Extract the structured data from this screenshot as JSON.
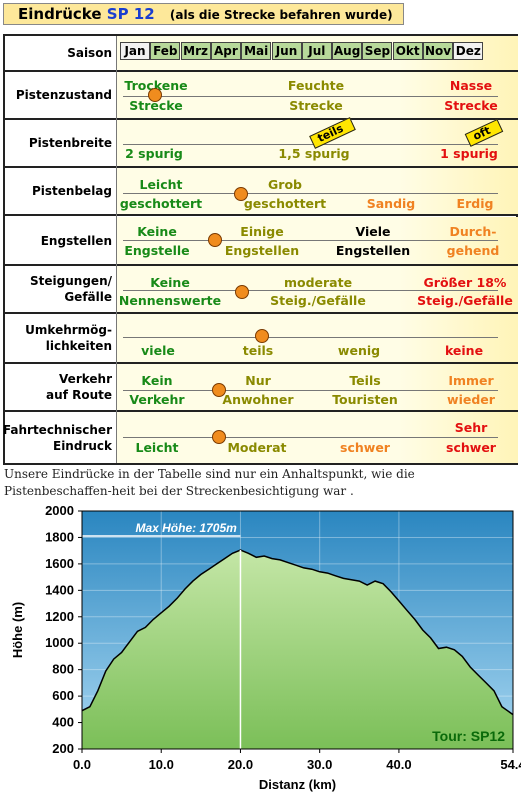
{
  "header": {
    "title_main": "Eindrücke",
    "title_route": "SP 12",
    "title_sub": "(als die Strecke befahren wurde)"
  },
  "season": {
    "label": "Saison",
    "months": [
      "Jan",
      "Feb",
      "Mrz",
      "Apr",
      "Mai",
      "Jun",
      "Jul",
      "Aug",
      "Sep",
      "Okt",
      "Nov",
      "Dez"
    ],
    "active": [
      false,
      true,
      true,
      true,
      true,
      true,
      true,
      true,
      true,
      true,
      true,
      false
    ],
    "active_color": "#b7d99a"
  },
  "rows": {
    "pistenzustand": {
      "label": "Pistenzustand",
      "opt1a": "Trockene",
      "opt1b": "Strecke",
      "opt2a": "Feuchte",
      "opt2b": "Strecke",
      "opt3a": "Nasse",
      "opt3b": "Strecke"
    },
    "pistenbreite": {
      "label": "Pistenbreite",
      "opt1": "2 spurig",
      "opt2": "1,5 spurig",
      "opt3": "1 spurig",
      "tag1": "teils",
      "tag2": "oft"
    },
    "pistenbelag": {
      "label": "Pistenbelag",
      "opt1a": "Leicht",
      "opt1b": "geschottert",
      "opt2a": "Grob",
      "opt2b": "geschottert",
      "opt3": "Sandig",
      "opt4": "Erdig"
    },
    "engstellen": {
      "label": "Engstellen",
      "opt1a": "Keine",
      "opt1b": "Engstelle",
      "opt2a": "Einige",
      "opt2b": "Engstellen",
      "opt3a": "Viele",
      "opt3b": "Engstellen",
      "opt4a": "Durch-",
      "opt4b": "gehend"
    },
    "steigungen": {
      "label1": "Steigungen/",
      "label2": "Gefälle",
      "opt1a": "Keine",
      "opt1b": "Nennenswerte",
      "opt2a": "moderate",
      "opt2b": "Steig./Gefälle",
      "opt3a": "Größer 18%",
      "opt3b": "Steig./Gefälle"
    },
    "umkehr": {
      "label1": "Umkehrmög-",
      "label2": "lichkeiten",
      "opt1": "viele",
      "opt2": "teils",
      "opt3": "wenig",
      "opt4": "keine"
    },
    "verkehr": {
      "label1": "Verkehr",
      "label2": "auf Route",
      "opt1a": "Kein",
      "opt1b": "Verkehr",
      "opt2a": "Nur",
      "opt2b": "Anwohner",
      "opt3a": "Teils",
      "opt3b": "Touristen",
      "opt4a": "Immer",
      "opt4b": "wieder"
    },
    "fahrtechnisch": {
      "label1": "Fahrtechnischer",
      "label2": "Eindruck",
      "opt1": "Leicht",
      "opt2": "Moderat",
      "opt3": "schwer",
      "opt4a": "Sehr",
      "opt4b": "schwer"
    }
  },
  "note": "Unsere Eindrücke in der Tabelle sind nur ein Anhaltspunkt, wie die Pistenbeschaffen-heit bei der Streckenbesichtigung war .",
  "chart_data": {
    "type": "area",
    "xlabel": "Distanz  (km)",
    "ylabel": "Höhe  (m)",
    "xlim": [
      0,
      54.4
    ],
    "ylim": [
      200,
      2000
    ],
    "xticks": [
      "0.0",
      "10.0",
      "20.0",
      "30.0",
      "40.0",
      "54.4"
    ],
    "xtick_values": [
      0,
      10,
      20,
      30,
      40,
      54.4
    ],
    "yticks": [
      200,
      400,
      600,
      800,
      1000,
      1200,
      1400,
      1600,
      1800,
      2000
    ],
    "annotation": "Max Höhe: 1705m",
    "annotation_x": 20,
    "max_value": 1705,
    "tour_label": "Tour: SP12",
    "x": [
      0,
      1,
      2,
      3,
      4,
      5,
      6,
      7,
      8,
      9,
      10,
      11,
      12,
      13,
      14,
      15,
      16,
      17,
      18,
      19,
      20,
      21,
      22,
      23,
      24,
      25,
      26,
      27,
      28,
      29,
      30,
      31,
      32,
      33,
      34,
      35,
      36,
      37,
      38,
      39,
      40,
      41,
      42,
      43,
      44,
      45,
      46,
      47,
      48,
      49,
      50,
      51,
      52,
      53,
      54.4
    ],
    "y": [
      490,
      520,
      640,
      790,
      880,
      930,
      1010,
      1090,
      1120,
      1180,
      1230,
      1280,
      1340,
      1410,
      1470,
      1520,
      1560,
      1600,
      1640,
      1680,
      1705,
      1680,
      1650,
      1660,
      1640,
      1630,
      1610,
      1590,
      1570,
      1560,
      1540,
      1530,
      1510,
      1490,
      1480,
      1470,
      1440,
      1470,
      1450,
      1390,
      1320,
      1250,
      1180,
      1100,
      1040,
      960,
      970,
      950,
      900,
      820,
      760,
      700,
      640,
      520,
      460
    ],
    "colors": {
      "top": "#c4e6a6",
      "bottom": "#7bbf58",
      "sky_top": "#2a86c0",
      "sky_bottom": "#a9d8f2",
      "line": "#000000",
      "annotation": "#ffffff",
      "tour": "#0a6a0a"
    }
  }
}
